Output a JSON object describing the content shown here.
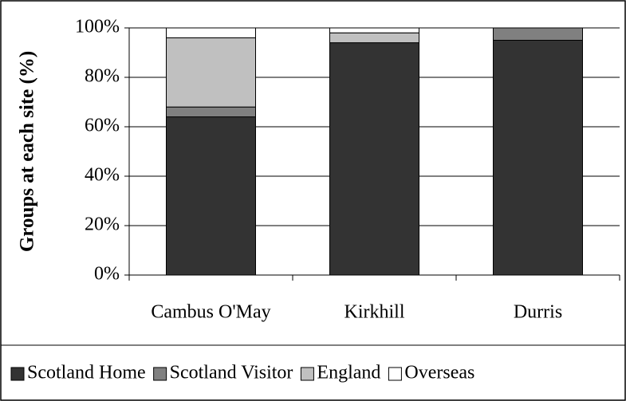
{
  "chart_data": {
    "type": "stacked_bar",
    "y_label": "Groups at each site (%)",
    "categories": [
      "Cambus O'May",
      "Kirkhill",
      "Durris"
    ],
    "series": [
      {
        "name": "Scotland Home",
        "color": "#333333",
        "values": [
          64,
          94,
          95
        ]
      },
      {
        "name": "Scotland Visitor",
        "color": "#808080",
        "values": [
          4,
          0,
          5
        ]
      },
      {
        "name": "England",
        "color": "#c0c0c0",
        "values": [
          28,
          4,
          0
        ]
      },
      {
        "name": "Overseas",
        "color": "#ffffff",
        "values": [
          4,
          2,
          0
        ]
      }
    ],
    "ylim": [
      0,
      100
    ],
    "yticks": [
      {
        "value": 0,
        "label": "0%"
      },
      {
        "value": 20,
        "label": "20%"
      },
      {
        "value": 40,
        "label": "40%"
      },
      {
        "value": 60,
        "label": "60%"
      },
      {
        "value": 80,
        "label": "80%"
      },
      {
        "value": 100,
        "label": "100%"
      }
    ],
    "grid": true,
    "legend": "bottom"
  }
}
